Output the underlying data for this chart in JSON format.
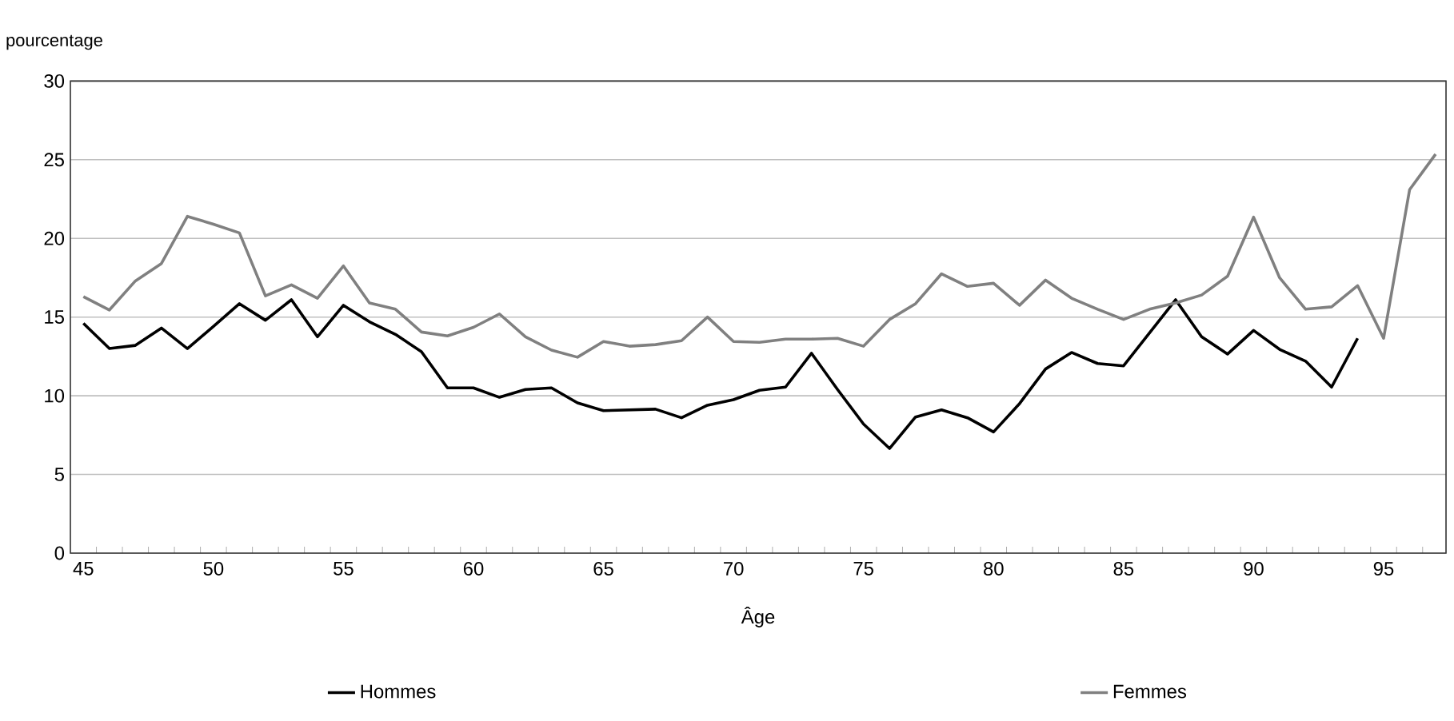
{
  "chart_data": {
    "type": "line",
    "ylabel": "pourcentage",
    "xlabel": "Âge",
    "xlim": [
      44.5,
      97.4
    ],
    "ylim": [
      0,
      30
    ],
    "xticks": [
      45,
      50,
      55,
      60,
      65,
      70,
      75,
      80,
      85,
      90,
      95,
      {
        "value": 45.5,
        "label": null
      },
      {
        "value": 46.5,
        "label": null
      },
      {
        "value": 47.5,
        "label": null
      },
      {
        "value": 48.5,
        "label": null
      },
      {
        "value": 49.5,
        "label": null
      },
      {
        "value": 50.5,
        "label": null
      },
      {
        "value": 51.5,
        "label": null
      },
      {
        "value": 52.5,
        "label": null
      },
      {
        "value": 53.5,
        "label": null
      },
      {
        "value": 54.5,
        "label": null
      },
      {
        "value": 55.5,
        "label": null
      },
      {
        "value": 56.5,
        "label": null
      },
      {
        "value": 57.5,
        "label": null
      },
      {
        "value": 58.5,
        "label": null
      },
      {
        "value": 59.5,
        "label": null
      },
      {
        "value": 60.5,
        "label": null
      },
      {
        "value": 61.5,
        "label": null
      },
      {
        "value": 62.5,
        "label": null
      },
      {
        "value": 63.5,
        "label": null
      },
      {
        "value": 64.5,
        "label": null
      },
      {
        "value": 65.5,
        "label": null
      },
      {
        "value": 66.5,
        "label": null
      },
      {
        "value": 67.5,
        "label": null
      },
      {
        "value": 68.5,
        "label": null
      },
      {
        "value": 69.5,
        "label": null
      },
      {
        "value": 70.5,
        "label": null
      },
      {
        "value": 71.5,
        "label": null
      },
      {
        "value": 72.5,
        "label": null
      },
      {
        "value": 73.5,
        "label": null
      },
      {
        "value": 74.5,
        "label": null
      },
      {
        "value": 75.5,
        "label": null
      },
      {
        "value": 76.5,
        "label": null
      },
      {
        "value": 77.5,
        "label": null
      },
      {
        "value": 78.5,
        "label": null
      },
      {
        "value": 79.5,
        "label": null
      },
      {
        "value": 80.5,
        "label": null
      },
      {
        "value": 81.5,
        "label": null
      },
      {
        "value": 82.5,
        "label": null
      },
      {
        "value": 83.5,
        "label": null
      },
      {
        "value": 84.5,
        "label": null
      },
      {
        "value": 85.5,
        "label": null
      },
      {
        "value": 86.5,
        "label": null
      },
      {
        "value": 87.5,
        "label": null
      },
      {
        "value": 88.5,
        "label": null
      },
      {
        "value": 89.5,
        "label": null
      },
      {
        "value": 90.5,
        "label": null
      },
      {
        "value": 91.5,
        "label": null
      },
      {
        "value": 92.5,
        "label": null
      },
      {
        "value": 93.5,
        "label": null
      },
      {
        "value": 94.5,
        "label": null
      },
      {
        "value": 95.5,
        "label": null
      },
      {
        "value": 96.5,
        "label": null
      }
    ],
    "yticks": [
      0,
      5,
      10,
      15,
      20,
      25,
      30
    ],
    "grid": "y",
    "legend": "bottom",
    "series": [
      {
        "name": "Hommes",
        "color": "#000000",
        "x": [
          45,
          46,
          47,
          48,
          49,
          50,
          51,
          52,
          53,
          54,
          55,
          56,
          57,
          58,
          59,
          60,
          61,
          62,
          63,
          64,
          65,
          66,
          67,
          68,
          69,
          70,
          71,
          72,
          73,
          74,
          75,
          76,
          77,
          78,
          79,
          80,
          81,
          82,
          83,
          84,
          85,
          86,
          87,
          88,
          89,
          90,
          91,
          92,
          93,
          94
        ],
        "values": [
          14.6,
          13.0,
          13.2,
          14.3,
          13.0,
          14.4,
          15.85,
          14.8,
          16.1,
          13.75,
          15.75,
          14.7,
          13.9,
          12.8,
          10.5,
          10.5,
          9.9,
          10.4,
          10.5,
          9.55,
          9.05,
          9.1,
          9.15,
          8.6,
          9.4,
          9.75,
          10.35,
          10.55,
          12.7,
          10.4,
          8.2,
          6.65,
          8.65,
          9.1,
          8.6,
          7.7,
          9.5,
          11.7,
          12.75,
          12.05,
          11.9,
          14.0,
          16.1,
          13.75,
          12.65,
          14.15,
          12.95,
          12.2,
          10.55,
          13.65
        ]
      },
      {
        "name": "Femmes",
        "color": "#808080",
        "x": [
          45,
          46,
          47,
          48,
          49,
          50,
          51,
          52,
          53,
          54,
          55,
          56,
          57,
          58,
          59,
          60,
          61,
          62,
          63,
          64,
          65,
          66,
          67,
          68,
          69,
          70,
          71,
          72,
          73,
          74,
          75,
          76,
          77,
          78,
          79,
          80,
          81,
          82,
          83,
          84,
          85,
          86,
          87,
          88,
          89,
          90,
          91,
          92,
          93,
          94,
          95,
          96,
          97
        ],
        "values": [
          16.3,
          15.45,
          17.3,
          18.4,
          21.4,
          20.9,
          20.35,
          16.35,
          17.05,
          16.2,
          18.25,
          15.9,
          15.5,
          14.05,
          13.8,
          14.35,
          15.2,
          13.75,
          12.9,
          12.45,
          13.45,
          13.15,
          13.25,
          13.5,
          15.0,
          13.45,
          13.4,
          13.6,
          13.6,
          13.65,
          13.15,
          14.85,
          15.85,
          17.75,
          16.95,
          17.15,
          15.75,
          17.35,
          16.2,
          15.5,
          14.85,
          15.5,
          15.9,
          16.4,
          17.6,
          21.35,
          17.5,
          15.5,
          15.65,
          17.0,
          13.65,
          23.1,
          25.35
        ]
      }
    ]
  }
}
